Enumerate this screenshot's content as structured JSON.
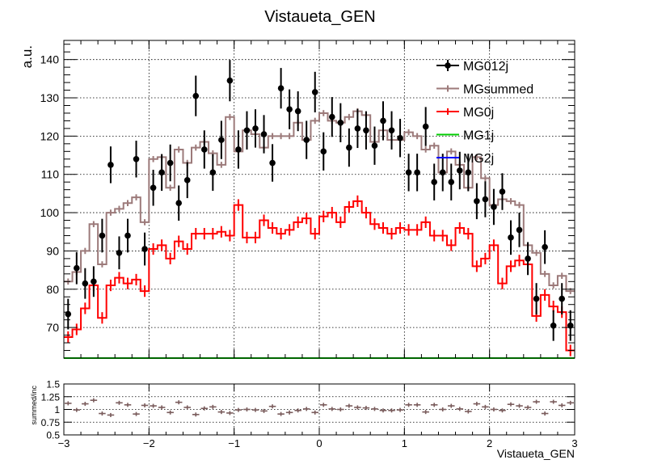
{
  "chart_data": [
    {
      "type": "line",
      "title": "Vistaueta_GEN",
      "xlabel": "",
      "ylabel": "a.u.",
      "xlim": [
        -3,
        3
      ],
      "ylim": [
        62,
        145
      ],
      "x_ticks": [
        -3,
        -2,
        -1,
        0,
        1,
        2,
        3
      ],
      "y_ticks": [
        70,
        80,
        90,
        100,
        110,
        120,
        130,
        140
      ],
      "grid": true,
      "legend_position": "top-right",
      "bin_edges": [
        -3,
        -2.9,
        -2.8,
        -2.7,
        -2.6,
        -2.5,
        -2.4,
        -2.3,
        -2.2,
        -2.1,
        -2,
        -1.9,
        -1.8,
        -1.7,
        -1.6,
        -1.5,
        -1.4,
        -1.3,
        -1.2,
        -1.1,
        -1,
        -0.9,
        -0.8,
        -0.7,
        -0.6,
        -0.5,
        -0.4,
        -0.3,
        -0.2,
        -0.1,
        0,
        0.1,
        0.2,
        0.3,
        0.4,
        0.5,
        0.6,
        0.7,
        0.8,
        0.9,
        1,
        1.1,
        1.2,
        1.3,
        1.4,
        1.5,
        1.6,
        1.7,
        1.8,
        1.9,
        2,
        2.1,
        2.2,
        2.3,
        2.4,
        2.5,
        2.6,
        2.7,
        2.8,
        2.9,
        3
      ],
      "series": [
        {
          "name": "MG012j",
          "color": "#000000",
          "style": "points",
          "values": [
            73.5,
            85.5,
            81.5,
            82,
            94,
            112.5,
            89.5,
            94,
            114,
            90.5,
            106.5,
            110.5,
            113,
            102.5,
            108.5,
            130.5,
            116.5,
            110.5,
            119,
            134.5,
            116.5,
            121.5,
            122,
            120.5,
            113,
            132.5,
            127,
            126.5,
            119,
            131.5,
            116,
            125,
            123.5,
            117,
            122,
            121.5,
            117.5,
            124,
            121.5,
            119.5,
            110.5,
            110.5,
            122.5,
            108,
            110.5,
            108,
            111,
            110.5,
            103,
            103.5,
            101.5,
            105.5,
            93.5,
            95.5,
            88,
            77.5,
            91,
            70.5,
            77.5,
            70.5
          ],
          "errors": [
            4,
            4.2,
            4,
            4,
            4.4,
            4.8,
            4.3,
            4.4,
            4.8,
            4.3,
            4.7,
            4.8,
            4.8,
            4.6,
            4.7,
            5.3,
            5,
            4.8,
            5,
            5.4,
            5,
            5,
            5,
            5,
            4.9,
            5.3,
            5.2,
            5.2,
            5,
            5.3,
            5,
            5.2,
            5.1,
            5,
            5.1,
            5,
            5,
            5.1,
            5,
            5,
            4.9,
            4.9,
            5.1,
            4.8,
            4.9,
            4.8,
            4.9,
            4.9,
            4.7,
            4.7,
            4.7,
            4.8,
            4.5,
            4.5,
            4.3,
            4.1,
            4.4,
            4,
            4.1,
            4
          ]
        },
        {
          "name": "MGsummed",
          "color": "#9c7a7a",
          "style": "step",
          "values": [
            82,
            84.5,
            90,
            97,
            86.5,
            100,
            101,
            102.5,
            104,
            97.5,
            114,
            114.5,
            106.5,
            116.5,
            113,
            117,
            118.5,
            115.5,
            112.5,
            125,
            116,
            121.5,
            120.5,
            117,
            120,
            120,
            120,
            123.5,
            119,
            124,
            126,
            124,
            123.5,
            125,
            126.5,
            125.5,
            118.5,
            121.5,
            119,
            119,
            121,
            120,
            116.5,
            117.5,
            110.5,
            116,
            112.5,
            106.5,
            114.5,
            109,
            102,
            103.5,
            103,
            102,
            91.5,
            89.5,
            84,
            81,
            83.5,
            79.5
          ],
          "errors": [
            0.8,
            0.8,
            0.8,
            0.8,
            0.8,
            0.8,
            0.8,
            0.8,
            0.8,
            0.8,
            0.8,
            0.8,
            0.8,
            0.8,
            0.8,
            0.8,
            0.8,
            0.8,
            0.8,
            0.8,
            0.8,
            0.8,
            0.8,
            0.8,
            0.8,
            0.8,
            0.8,
            0.8,
            0.8,
            0.8,
            0.8,
            0.8,
            0.8,
            0.8,
            0.8,
            0.8,
            0.8,
            0.8,
            0.8,
            0.8,
            0.8,
            0.8,
            0.8,
            0.8,
            0.8,
            0.8,
            0.8,
            0.8,
            0.8,
            0.8,
            0.8,
            0.8,
            0.8,
            0.8,
            0.8,
            0.8,
            0.8,
            0.8,
            0.8,
            0.8
          ]
        },
        {
          "name": "MG0j",
          "color": "#ff0000",
          "style": "step",
          "values": [
            67.5,
            69.5,
            75,
            81,
            72.5,
            81,
            83,
            81.5,
            82.5,
            79.5,
            90.5,
            91.5,
            88,
            92.5,
            90.5,
            94.5,
            94.5,
            94.5,
            95,
            94,
            102,
            93.5,
            93.5,
            98,
            96,
            94.5,
            95.5,
            97.5,
            98.5,
            94.5,
            99,
            100,
            97.5,
            101.5,
            103,
            100,
            97,
            96,
            94.5,
            96,
            95.5,
            95.5,
            97.5,
            94,
            94,
            91.5,
            96,
            94.5,
            86,
            88,
            91.5,
            81.5,
            86,
            87.5,
            86.5,
            73,
            78.5,
            75.5,
            74,
            64
          ],
          "errors": [
            1.5,
            1.5,
            1.5,
            1.5,
            1.5,
            1.5,
            1.5,
            1.5,
            1.5,
            1.5,
            1.5,
            1.5,
            1.5,
            1.5,
            1.5,
            1.5,
            1.5,
            1.5,
            1.5,
            1.5,
            1.5,
            1.5,
            1.5,
            1.5,
            1.5,
            1.5,
            1.5,
            1.5,
            1.5,
            1.5,
            1.5,
            1.5,
            1.5,
            1.5,
            1.5,
            1.5,
            1.5,
            1.5,
            1.5,
            1.5,
            1.5,
            1.5,
            1.5,
            1.5,
            1.5,
            1.5,
            1.5,
            1.5,
            1.5,
            1.5,
            1.5,
            1.5,
            1.5,
            1.5,
            1.5,
            1.5,
            1.5,
            1.5,
            1.5,
            1.5
          ]
        },
        {
          "name": "MG1j",
          "color": "#00cc00",
          "style": "step",
          "values": [
            62,
            62,
            62,
            62,
            62,
            62,
            62,
            62,
            62,
            62,
            62,
            62,
            62,
            62,
            62,
            62,
            62,
            62,
            62,
            62,
            62,
            62,
            62,
            62,
            62,
            62,
            62,
            62,
            62,
            62,
            62,
            62,
            62,
            62,
            62,
            62,
            62,
            62,
            62,
            62,
            62,
            62,
            62,
            62,
            62,
            62,
            62,
            62,
            62,
            62,
            62,
            62,
            62,
            62,
            62,
            62,
            62,
            62,
            62,
            62
          ]
        },
        {
          "name": "MG2j",
          "color": "#0000ff",
          "style": "step",
          "values": [
            62,
            62,
            62,
            62,
            62,
            62,
            62,
            62,
            62,
            62,
            62,
            62,
            62,
            62,
            62,
            62,
            62,
            62,
            62,
            62,
            62,
            62,
            62,
            62,
            62,
            62,
            62,
            62,
            62,
            62,
            62,
            62,
            62,
            62,
            62,
            62,
            62,
            62,
            62,
            62,
            62,
            62,
            62,
            62,
            62,
            62,
            62,
            62,
            62,
            62,
            62,
            62,
            62,
            62,
            62,
            62,
            62,
            62,
            62,
            62
          ]
        }
      ]
    },
    {
      "type": "scatter",
      "title": "",
      "xlabel": "Vistaueta_GEN",
      "ylabel": "summed/inc",
      "xlim": [
        -3,
        3
      ],
      "ylim": [
        0.5,
        1.5
      ],
      "x_ticks": [
        -3,
        -2,
        -1,
        0,
        1,
        2,
        3
      ],
      "x_tick_labels": [
        "−3",
        "−2",
        "−1",
        "0",
        "1",
        "2",
        "3"
      ],
      "y_ticks": [
        0.5,
        0.75,
        1,
        1.25,
        1.5
      ],
      "y_tick_labels": [
        "0.5",
        "0.75",
        "1",
        "1.25",
        "1.5"
      ],
      "grid": true,
      "series": [
        {
          "name": "",
          "color": "#7a5c5c",
          "values": [
            1.12,
            0.99,
            1.11,
            1.18,
            0.92,
            0.89,
            1.13,
            1.09,
            0.91,
            1.08,
            1.07,
            1.04,
            0.94,
            1.14,
            1.04,
            0.9,
            1.02,
            1.05,
            0.95,
            0.93,
            0.99,
            1,
            0.99,
            0.97,
            1.06,
            0.91,
            0.94,
            0.98,
            1.01,
            0.94,
            1.09,
            1.01,
            1,
            1.07,
            1.04,
            1.03,
            1.01,
            0.98,
            0.98,
            0.99,
            1.09,
            1.09,
            0.95,
            1.09,
            1,
            1.07,
            1.01,
            0.96,
            1.11,
            1.05,
            1,
            0.98,
            1.1,
            1.07,
            1.04,
            1.15,
            0.92,
            1.15,
            1.08,
            1.13
          ],
          "xerr": 0.05,
          "yerr": 0.04
        }
      ]
    }
  ]
}
